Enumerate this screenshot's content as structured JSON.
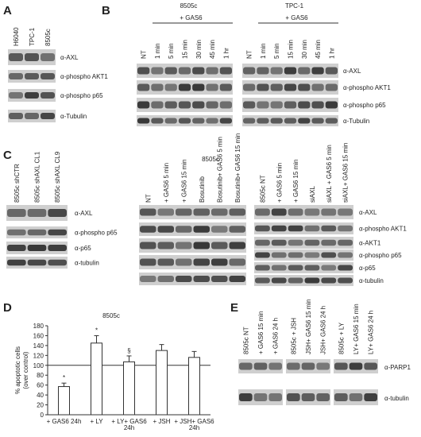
{
  "panel_a": {
    "label": "A",
    "lanes": [
      "H6040",
      "TPC-1",
      "8505c"
    ],
    "blots": [
      "α-AXL",
      "α-phospho AKT1",
      "α-phospho p65",
      "α-Tubulin"
    ]
  },
  "panel_b": {
    "label": "B",
    "groups": [
      {
        "cell_line": "8505c",
        "treatment": "+ GAS6",
        "lanes": [
          "NT",
          "1 min",
          "5 min",
          "15 min",
          "30 min",
          "45 min",
          "1 hr"
        ]
      },
      {
        "cell_line": "TPC-1",
        "treatment": "+ GAS6",
        "lanes": [
          "NT",
          "1 min",
          "5 min",
          "15 min",
          "30 min",
          "45 min",
          "1 hr"
        ]
      }
    ],
    "blots": [
      "α-AXL",
      "α-phospho AKT1",
      "α-phospho p65",
      "α-Tubulin"
    ]
  },
  "panel_c": {
    "label": "C",
    "title": "8505c",
    "groups": [
      {
        "lanes": [
          "8505c shCTR",
          "8505c shAXL CL1",
          "8505c shAXL CL9"
        ],
        "blots": [
          "α-AXL",
          "α-phospho p65",
          "α-p65",
          "α-tubulin"
        ]
      },
      {
        "lanes": [
          "NT",
          "+ GAS6 5 min",
          "+ GAS6 15 min",
          "Bosutinib",
          "Bosutinib+ GAS6 5 min",
          "Bosutinib+ GAS6 15 min"
        ]
      },
      {
        "lanes": [
          "8505c NT",
          "+ GAS6 5 min",
          "+ GAS6 15 min",
          "siAXL",
          "siAXL + GAS6 5 min",
          "siAXL+ GAS6 15 min"
        ],
        "blots": [
          "α-AXL",
          "α-phospho AKT1",
          "α-AKT1",
          "α-phospho p65",
          "α-p65",
          "α-tubulin"
        ]
      }
    ]
  },
  "panel_d": {
    "label": "D",
    "type": "bar",
    "title": "8505c",
    "y_label": [
      "% apoptotic cells",
      "(over control)"
    ],
    "categories": [
      [
        "+ GAS6 24h"
      ],
      [
        "+ LY"
      ],
      [
        "+ LY+ GAS6",
        "24h"
      ],
      [
        "+ JSH"
      ],
      [
        "+ JSH+ GAS6",
        "24h"
      ]
    ],
    "values": [
      57,
      145,
      107,
      130,
      116
    ],
    "errors": [
      7,
      15,
      12,
      12,
      12
    ],
    "annotations": [
      "*",
      "*",
      "§",
      null,
      null
    ],
    "reference_line": 100,
    "ylim": [
      0,
      180
    ],
    "yticks": [
      0,
      20,
      40,
      60,
      80,
      100,
      120,
      140,
      160,
      180
    ],
    "color": "#ffffff"
  },
  "panel_e": {
    "label": "E",
    "groups": [
      {
        "lanes": [
          "8505c NT",
          "+ GAS6 15 min",
          "+ GAS6 24 h"
        ]
      },
      {
        "lanes": [
          "8505c + JSH",
          "JSH+ GAS6 15 min",
          "JSH+ GAS6 24 h"
        ]
      },
      {
        "lanes": [
          "8505c + LY",
          "LY+ GAS6 15 min",
          "LY+ GAS6 24 h"
        ]
      }
    ],
    "blots": [
      "α-PARP1",
      "α-tubulin"
    ]
  }
}
